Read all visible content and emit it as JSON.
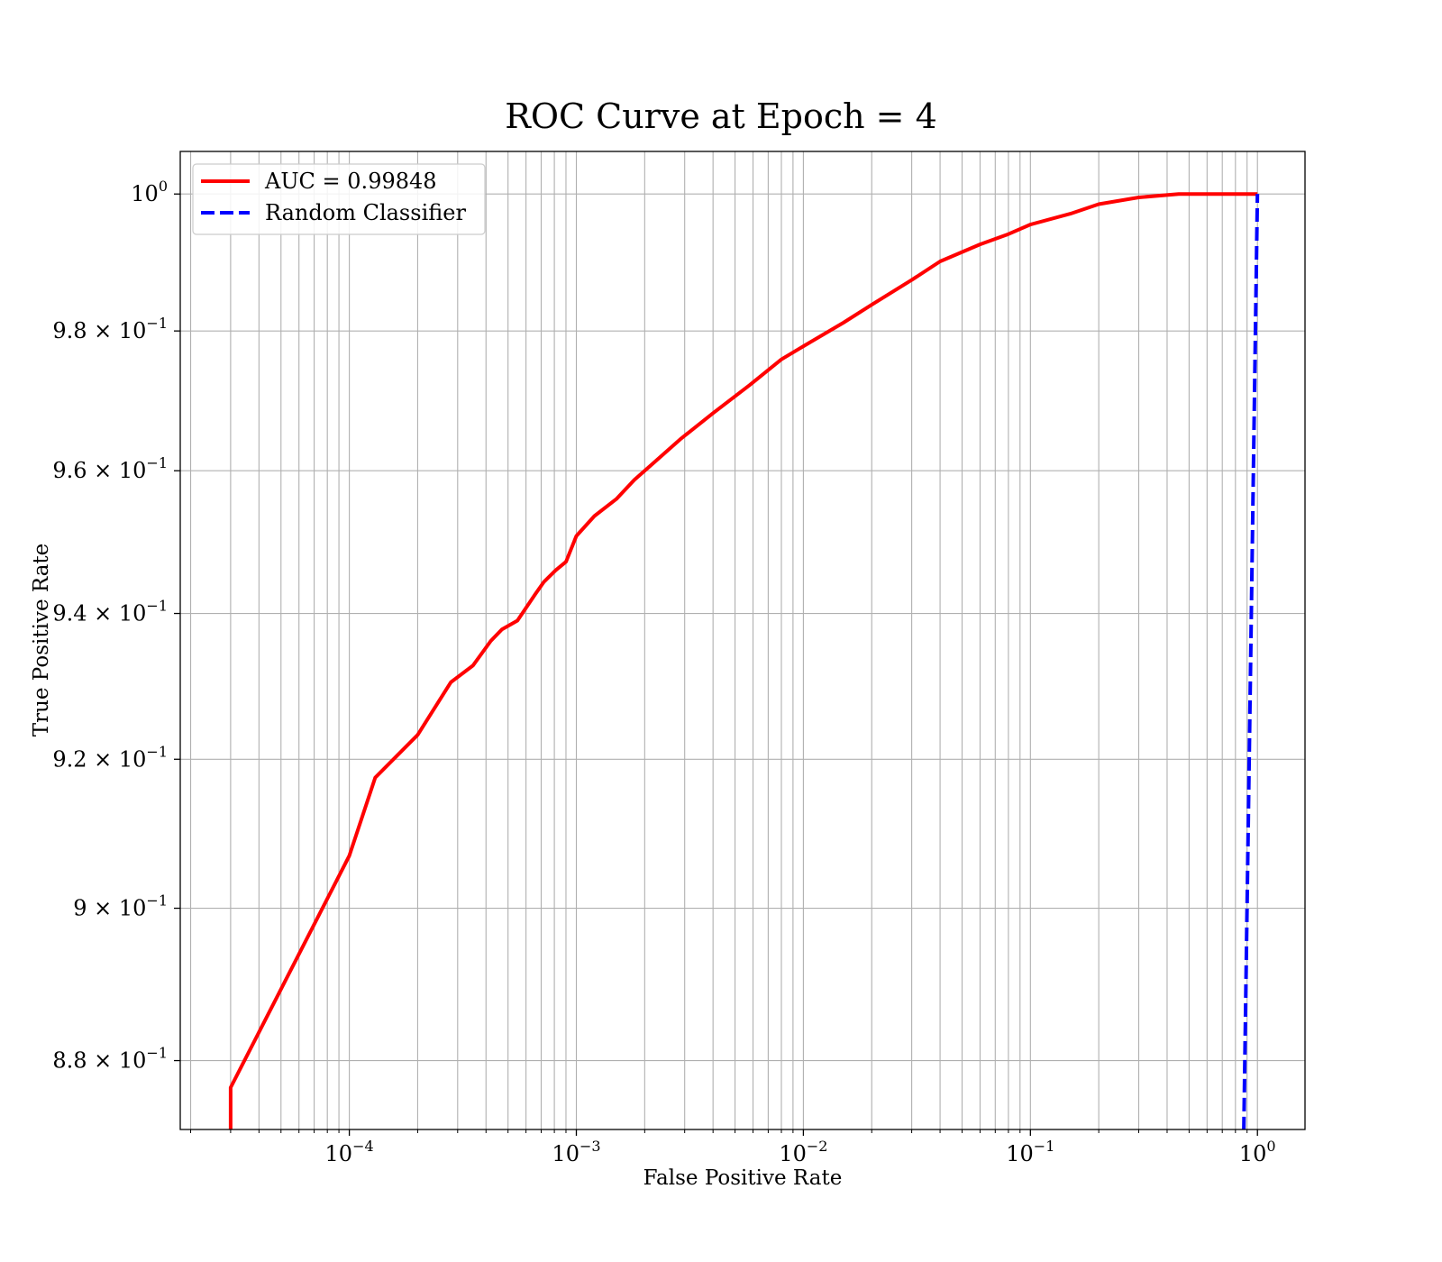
{
  "chart_data": {
    "type": "line",
    "title": "ROC Curve at Epoch = 4",
    "xlabel": "False Positive Rate",
    "ylabel": "True Positive Rate",
    "xscale": "log",
    "yscale": "log",
    "xlim": [
      1.8e-05,
      1.62
    ],
    "ylim": [
      0.8711,
      1.0063
    ],
    "grid": true,
    "legend_position": "top-left",
    "x_ticks": [
      {
        "value": 0.0001,
        "base": "10",
        "exp": "−4"
      },
      {
        "value": 0.001,
        "base": "10",
        "exp": "−3"
      },
      {
        "value": 0.01,
        "base": "10",
        "exp": "−2"
      },
      {
        "value": 0.1,
        "base": "10",
        "exp": "−1"
      },
      {
        "value": 1,
        "base": "10",
        "exp": "0"
      }
    ],
    "y_ticks": [
      {
        "value": 1.0,
        "base": "10",
        "exp": "0"
      },
      {
        "value": 0.98,
        "base": "9.8 × 10",
        "exp": "−1"
      },
      {
        "value": 0.96,
        "base": "9.6 × 10",
        "exp": "−1"
      },
      {
        "value": 0.94,
        "base": "9.4 × 10",
        "exp": "−1"
      },
      {
        "value": 0.92,
        "base": "9.2 × 10",
        "exp": "−1"
      },
      {
        "value": 0.9,
        "base": "9 × 10",
        "exp": "−1"
      },
      {
        "value": 0.88,
        "base": "8.8 × 10",
        "exp": "−1"
      }
    ],
    "series": [
      {
        "name": "AUC = 0.99848",
        "color": "#ff0000",
        "style": "solid",
        "x": [
          3e-05,
          3e-05,
          0.0001,
          0.00013,
          0.0002,
          0.00028,
          0.00035,
          0.00042,
          0.00047,
          0.00055,
          0.00066,
          0.00072,
          0.00081,
          0.0009,
          0.001,
          0.0012,
          0.0015,
          0.0018,
          0.0021,
          0.0029,
          0.004,
          0.0058,
          0.008,
          0.01,
          0.015,
          0.02,
          0.03,
          0.04,
          0.06,
          0.08,
          0.1,
          0.15,
          0.2,
          0.3,
          0.45,
          0.6,
          0.8,
          1.0
        ],
        "y": [
          0.871,
          0.8765,
          0.907,
          0.9175,
          0.9233,
          0.9305,
          0.9328,
          0.9362,
          0.9378,
          0.939,
          0.9427,
          0.9444,
          0.946,
          0.9472,
          0.9508,
          0.9536,
          0.956,
          0.9587,
          0.9606,
          0.9646,
          0.9682,
          0.9722,
          0.9759,
          0.9778,
          0.9812,
          0.9838,
          0.9874,
          0.9901,
          0.9926,
          0.9941,
          0.9955,
          0.9971,
          0.9985,
          0.9995,
          1.0,
          1.0,
          1.0,
          1.0
        ]
      },
      {
        "name": "Random Classifier",
        "color": "#0000ff",
        "style": "dashed",
        "x": [
          0.871,
          1.0
        ],
        "y": [
          0.871,
          1.0
        ]
      }
    ]
  }
}
